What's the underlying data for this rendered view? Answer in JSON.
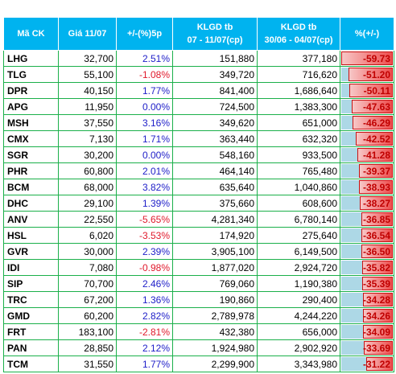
{
  "table": {
    "headers": {
      "code": "Mã CK",
      "price": "Giá 11/07",
      "change": "+/-(%)5p",
      "vol1_line1": "KLGD tb",
      "vol1_line2": "07 - 11/07(cp)",
      "vol2_line1": "KLGD tb",
      "vol2_line2": "30/06 - 04/07(cp)",
      "pct": "%(+/-)"
    },
    "colors": {
      "header_bg": "#00b3ef",
      "positive_text": "#1d1dc8",
      "negative_text": "#e0192b",
      "bar_fill": "#ee4d4d",
      "bar_background": "#add8e6",
      "grid": "#1bb04a"
    },
    "rows": [
      {
        "code": "LHG",
        "price": "32,700",
        "change": "2.51%",
        "vol1": "151,880",
        "vol2": "377,180",
        "pct": "-59.73",
        "pct_value": -59.73
      },
      {
        "code": "TLG",
        "price": "55,100",
        "change": "-1.08%",
        "vol1": "349,720",
        "vol2": "716,620",
        "pct": "-51.20",
        "pct_value": -51.2
      },
      {
        "code": "DPR",
        "price": "40,150",
        "change": "1.77%",
        "vol1": "841,400",
        "vol2": "1,686,640",
        "pct": "-50.11",
        "pct_value": -50.11
      },
      {
        "code": "APG",
        "price": "11,950",
        "change": "0.00%",
        "vol1": "724,500",
        "vol2": "1,383,300",
        "pct": "-47.63",
        "pct_value": -47.63
      },
      {
        "code": "MSH",
        "price": "37,550",
        "change": "3.16%",
        "vol1": "349,620",
        "vol2": "651,000",
        "pct": "-46.29",
        "pct_value": -46.29
      },
      {
        "code": "CMX",
        "price": "7,130",
        "change": "1.71%",
        "vol1": "363,440",
        "vol2": "632,320",
        "pct": "-42.52",
        "pct_value": -42.52
      },
      {
        "code": "SGR",
        "price": "30,200",
        "change": "0.00%",
        "vol1": "548,160",
        "vol2": "933,500",
        "pct": "-41.28",
        "pct_value": -41.28
      },
      {
        "code": "PHR",
        "price": "60,800",
        "change": "2.01%",
        "vol1": "464,140",
        "vol2": "765,480",
        "pct": "-39.37",
        "pct_value": -39.37
      },
      {
        "code": "BCM",
        "price": "68,000",
        "change": "3.82%",
        "vol1": "635,640",
        "vol2": "1,040,860",
        "pct": "-38.93",
        "pct_value": -38.93
      },
      {
        "code": "DHC",
        "price": "29,100",
        "change": "1.39%",
        "vol1": "375,660",
        "vol2": "608,600",
        "pct": "-38.27",
        "pct_value": -38.27
      },
      {
        "code": "ANV",
        "price": "22,550",
        "change": "-5.65%",
        "vol1": "4,281,340",
        "vol2": "6,780,140",
        "pct": "-36.85",
        "pct_value": -36.85
      },
      {
        "code": "HSL",
        "price": "6,020",
        "change": "-3.53%",
        "vol1": "174,920",
        "vol2": "275,640",
        "pct": "-36.54",
        "pct_value": -36.54
      },
      {
        "code": "GVR",
        "price": "30,000",
        "change": "2.39%",
        "vol1": "3,905,100",
        "vol2": "6,149,500",
        "pct": "-36.50",
        "pct_value": -36.5
      },
      {
        "code": "IDI",
        "price": "7,080",
        "change": "-0.98%",
        "vol1": "1,877,020",
        "vol2": "2,924,720",
        "pct": "-35.82",
        "pct_value": -35.82
      },
      {
        "code": "SIP",
        "price": "70,700",
        "change": "2.46%",
        "vol1": "769,060",
        "vol2": "1,190,380",
        "pct": "-35.39",
        "pct_value": -35.39
      },
      {
        "code": "TRC",
        "price": "67,200",
        "change": "1.36%",
        "vol1": "190,860",
        "vol2": "290,400",
        "pct": "-34.28",
        "pct_value": -34.28
      },
      {
        "code": "GMD",
        "price": "60,200",
        "change": "2.82%",
        "vol1": "2,789,978",
        "vol2": "4,244,220",
        "pct": "-34.26",
        "pct_value": -34.26
      },
      {
        "code": "FRT",
        "price": "183,100",
        "change": "-2.81%",
        "vol1": "432,380",
        "vol2": "656,000",
        "pct": "-34.09",
        "pct_value": -34.09
      },
      {
        "code": "PAN",
        "price": "28,850",
        "change": "2.12%",
        "vol1": "1,924,980",
        "vol2": "2,902,920",
        "pct": "-33.69",
        "pct_value": -33.69
      },
      {
        "code": "TCM",
        "price": "31,550",
        "change": "1.77%",
        "vol1": "2,299,900",
        "vol2": "3,343,980",
        "pct": "-31.22",
        "pct_value": -31.22
      }
    ]
  }
}
